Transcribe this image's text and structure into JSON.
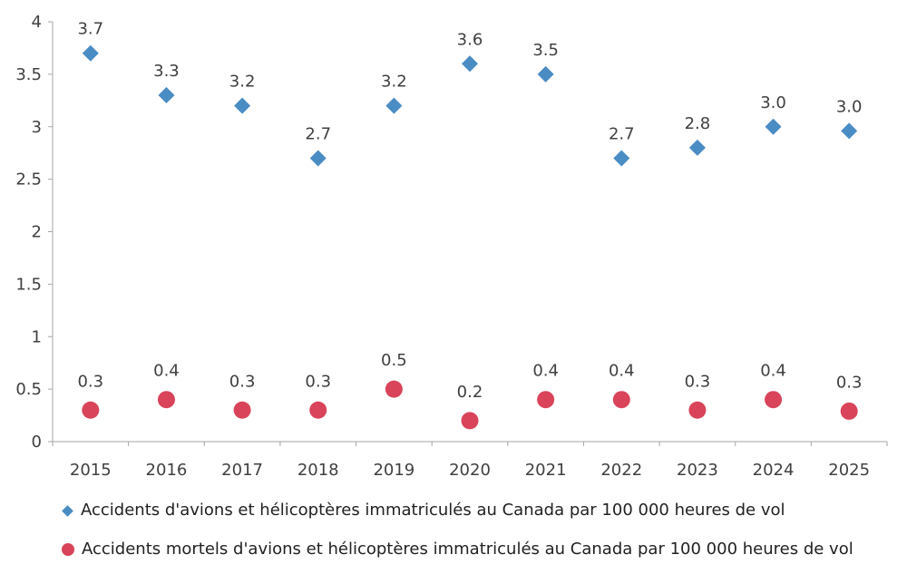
{
  "chart_data": {
    "type": "scatter",
    "title": "",
    "xlabel": "",
    "ylabel": "",
    "categories": [
      "2015",
      "2016",
      "2017",
      "2018",
      "2019",
      "2020",
      "2021",
      "2022",
      "2023",
      "2024",
      "2025"
    ],
    "ylim": [
      0,
      4
    ],
    "yticks": [
      "0",
      "0.5",
      "1",
      "1.5",
      "2",
      "2.5",
      "3",
      "3.5",
      "4"
    ],
    "grid": false,
    "legend_position": "bottom",
    "series": [
      {
        "name": "Accidents d'avions et hélicoptères immatriculés au Canada par 100 000 heures de vol",
        "marker": "diamond",
        "color": "#4a8cc4",
        "values": [
          3.7,
          3.3,
          3.2,
          2.7,
          3.2,
          3.6,
          3.5,
          2.7,
          2.8,
          3.0,
          2.96
        ],
        "labels": [
          "3.7",
          "3.3",
          "3.2",
          "2.7",
          "3.2",
          "3.6",
          "3.5",
          "2.7",
          "2.8",
          "3.0",
          "3.0"
        ]
      },
      {
        "name": "Accidents mortels d'avions et hélicoptères immatriculés au Canada par 100 000 heures de vol",
        "marker": "circle",
        "color": "#d9445a",
        "values": [
          0.3,
          0.4,
          0.3,
          0.3,
          0.5,
          0.2,
          0.4,
          0.4,
          0.3,
          0.4,
          0.29
        ],
        "labels": [
          "0.3",
          "0.4",
          "0.3",
          "0.3",
          "0.5",
          "0.2",
          "0.4",
          "0.4",
          "0.3",
          "0.4",
          "0.3"
        ]
      }
    ]
  }
}
